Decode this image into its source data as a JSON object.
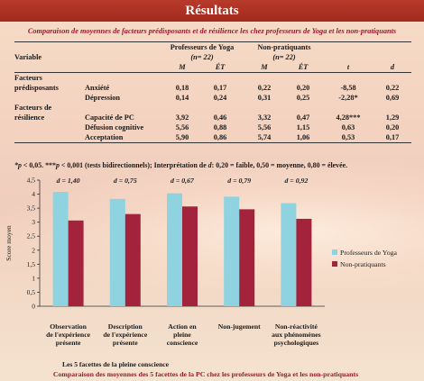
{
  "header": {
    "title": "Résultats"
  },
  "table": {
    "title": "Comparaison de moyennes de facteurs prédisposants et de résilience les chez professeurs de Yoga et les non-pratiquants",
    "col_variable": "Variable",
    "group1": "Professeurs de Yoga",
    "group1_n": "(n= 22)",
    "group2": "Non-pratiquants",
    "group2_n": "(n= 22)",
    "col_m": "M",
    "col_et": "ÉT",
    "col_t": "t",
    "col_d": "d",
    "sections": [
      {
        "label_line1": "Facteurs",
        "label_line2": "prédisposants",
        "rows": [
          {
            "name": "Anxiété",
            "m1": "0,18",
            "et1": "0,17",
            "m2": "0,22",
            "et2": "0,20",
            "t": "-8,58",
            "d": "0,22"
          },
          {
            "name": "Dépression",
            "m1": "0,14",
            "et1": "0,24",
            "m2": "0,31",
            "et2": "0,25",
            "t": "-2,28*",
            "d": "0,69"
          }
        ]
      },
      {
        "label_line1": "Facteurs de",
        "label_line2": "résilience",
        "rows": [
          {
            "name": "Capacité de PC",
            "m1": "3,92",
            "et1": "0,46",
            "m2": "3,32",
            "et2": "0,47",
            "t": "4,28***",
            "d": "1,29"
          },
          {
            "name": "Défusion cognitive",
            "m1": "5,56",
            "et1": "0,88",
            "m2": "5,56",
            "et2": "1,15",
            "t": "0,63",
            "d": "0,20"
          },
          {
            "name": "Acceptation",
            "m1": "5,90",
            "et1": "0,86",
            "m2": "5,74",
            "et2": "1,06",
            "t": "0,53",
            "d": "0,17"
          }
        ]
      }
    ],
    "note_p1": "*p",
    "note_t1": " < 0,05.  ***",
    "note_p2": "p",
    "note_t2": " < 0,001 (tests bidirectionnels); Interprétation de ",
    "note_d": "d",
    "note_t3": ": 0,20 = faible, 0,50 = moyenne, 0,80 = élevée."
  },
  "chart_data": {
    "type": "bar",
    "title": "",
    "xlabel": "Les 5 facettes de la pleine conscience",
    "ylabel": "Score moyen",
    "ylim": [
      0,
      4.5
    ],
    "yticks": [
      0,
      0.5,
      1,
      1.5,
      2,
      2.5,
      3,
      3.5,
      4,
      4.5
    ],
    "ytick_labels": [
      "0",
      "0,5",
      "1",
      "1,5",
      "2",
      "2,5",
      "3",
      "3,5",
      "4",
      "4,5"
    ],
    "grid": false,
    "legend_position": "right",
    "categories": [
      [
        "Observation",
        "de l'expérience",
        "présente"
      ],
      [
        "Description",
        "de l'expérience",
        "présente"
      ],
      [
        "Action en",
        "pleine",
        "conscience"
      ],
      [
        "Non-jugement"
      ],
      [
        "Non-réactivité",
        "aux phénomènes",
        "psychologiques"
      ]
    ],
    "annotations": [
      "d = 1,40",
      "d = 0,75",
      "d = 0,67",
      "d = 0,79",
      "d = 0,92"
    ],
    "series": [
      {
        "name": "Professeurs de Yoga",
        "color": "#8fd3e0",
        "values": [
          4.08,
          3.83,
          4.03,
          3.91,
          3.68
        ]
      },
      {
        "name": "Non-pratiquants",
        "color": "#a3233d",
        "values": [
          3.06,
          3.29,
          3.56,
          3.46,
          3.12
        ]
      }
    ],
    "caption": "Comparaison des moyennes des 5 facettes de la PC chez les professeurs de Yoga et les non-pratiquants"
  }
}
